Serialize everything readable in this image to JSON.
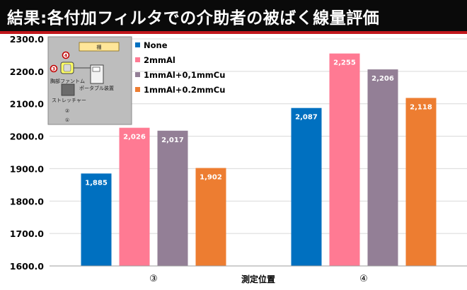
{
  "page_title": "結果:各付加フィルタでの介助者の被ばく線量評価",
  "colors": {
    "title_bg": "#0a0a0a",
    "title_underline": "#c0161b",
    "series": [
      "#0070c0",
      "#ff7a93",
      "#937f96",
      "#ed7d31"
    ]
  },
  "inset": {
    "shelf_label": "棚",
    "marker_4": "4",
    "marker_3": "3",
    "phantom_label": "胸部ファントム",
    "portable_label": "ポータブル装置",
    "stretcher_label": "ストレッチャー",
    "position_2": "②",
    "position_1": "①"
  },
  "chart_data": {
    "type": "bar",
    "title": "結果:各付加フィルタでの介助者の被ばく線量評価",
    "xlabel": "測定位置",
    "ylabel": "",
    "ylim": [
      1600,
      2300
    ],
    "yticks": [
      1600,
      1700,
      1800,
      1900,
      2000,
      2100,
      2200,
      2300
    ],
    "ytick_labels": [
      "1600.0",
      "1700.0",
      "1800.0",
      "1900.0",
      "2000.0",
      "2100.0",
      "2200.0",
      "2300.0"
    ],
    "categories": [
      "③",
      "④"
    ],
    "series": [
      {
        "name": "None",
        "values": [
          1885,
          2087
        ],
        "labels": [
          "1,885",
          "2,087"
        ]
      },
      {
        "name": "2mmAl",
        "values": [
          2026,
          2255
        ],
        "labels": [
          "2,026",
          "2,255"
        ]
      },
      {
        "name": "1mmAl+0,1mmCu",
        "values": [
          2017,
          2206
        ],
        "labels": [
          "2,017",
          "2,206"
        ]
      },
      {
        "name": "1mmAl+0.2mmCu",
        "values": [
          1902,
          2118
        ],
        "labels": [
          "1,902",
          "2,118"
        ]
      }
    ],
    "grid": true,
    "legend_position": "top-center"
  }
}
